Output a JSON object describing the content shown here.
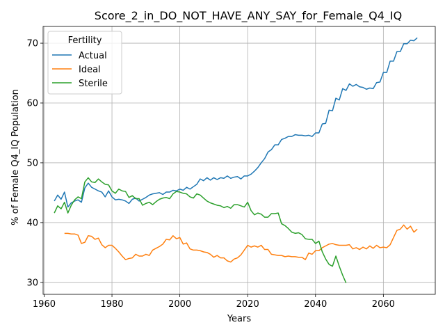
{
  "chart_data": {
    "type": "line",
    "title": "Score_2_in_DO_NOT_HAVE_ANY_SAY_for_Female_Q4_IQ",
    "xlabel": "Years",
    "ylabel": "% of Female Q4_IQ Population",
    "xlim": [
      1959.7,
      2075.3
    ],
    "ylim": [
      28.0,
      72.8
    ],
    "xticks": [
      1960,
      1980,
      2000,
      2020,
      2040,
      2060
    ],
    "yticks": [
      30,
      40,
      50,
      60,
      70
    ],
    "grid": true,
    "legend": {
      "title": "Fertility",
      "position": "top-left"
    },
    "series": [
      {
        "name": "Actual",
        "color": "#1f77b4",
        "x": [
          1963,
          1964,
          1965,
          1966,
          1967,
          1968,
          1969,
          1970,
          1971,
          1972,
          1973,
          1974,
          1975,
          1976,
          1977,
          1978,
          1979,
          1980,
          1981,
          1982,
          1983,
          1984,
          1985,
          1986,
          1987,
          1988,
          1989,
          1990,
          1991,
          1992,
          1993,
          1994,
          1995,
          1996,
          1997,
          1998,
          1999,
          2000,
          2001,
          2002,
          2003,
          2004,
          2005,
          2006,
          2007,
          2008,
          2009,
          2010,
          2011,
          2012,
          2013,
          2014,
          2015,
          2016,
          2017,
          2018,
          2019,
          2020,
          2021,
          2022,
          2023,
          2024,
          2025,
          2026,
          2027,
          2028,
          2029,
          2030,
          2031,
          2032,
          2033,
          2034,
          2035,
          2036,
          2037,
          2038,
          2039,
          2040,
          2041,
          2042,
          2043,
          2044,
          2045,
          2046,
          2047,
          2048,
          2049,
          2050,
          2051,
          2052,
          2053,
          2054,
          2055,
          2056,
          2057,
          2058,
          2059,
          2060,
          2061,
          2062,
          2063,
          2064,
          2065,
          2066,
          2067,
          2068,
          2069,
          2070
        ],
        "y": [
          43.6,
          44.6,
          43.9,
          45.1,
          42.6,
          43.3,
          43.6,
          43.8,
          43.4,
          45.8,
          46.6,
          45.9,
          45.6,
          45.3,
          45.1,
          44.3,
          45.3,
          44.3,
          43.8,
          43.9,
          43.8,
          43.6,
          43.2,
          43.9,
          44.1,
          43.6,
          43.9,
          44.2,
          44.6,
          44.8,
          44.9,
          45.0,
          44.7,
          45.1,
          45.1,
          45.4,
          45.3,
          45.6,
          45.4,
          45.9,
          45.6,
          46.0,
          46.4,
          47.3,
          47.0,
          47.5,
          47.1,
          47.5,
          47.2,
          47.5,
          47.4,
          47.8,
          47.4,
          47.6,
          47.7,
          47.3,
          47.8,
          47.8,
          48.1,
          48.6,
          49.2,
          50.0,
          50.7,
          51.8,
          52.2,
          53.0,
          53.0,
          53.9,
          54.1,
          54.4,
          54.4,
          54.7,
          54.6,
          54.6,
          54.5,
          54.6,
          54.4,
          55.0,
          55.0,
          56.5,
          56.6,
          58.8,
          58.7,
          60.8,
          60.5,
          62.4,
          62.1,
          63.2,
          62.8,
          63.1,
          62.7,
          62.6,
          62.3,
          62.5,
          62.4,
          63.4,
          63.5,
          65.1,
          65.1,
          67.0,
          67.0,
          68.6,
          68.6,
          69.9,
          69.9,
          70.5,
          70.4,
          70.9
        ]
      },
      {
        "name": "Ideal",
        "color": "#ff7f0e",
        "x": [
          1966,
          1967,
          1968,
          1969,
          1970,
          1971,
          1972,
          1973,
          1974,
          1975,
          1976,
          1977,
          1978,
          1979,
          1980,
          1981,
          1982,
          1983,
          1984,
          1985,
          1986,
          1987,
          1988,
          1989,
          1990,
          1991,
          1992,
          1993,
          1994,
          1995,
          1996,
          1997,
          1998,
          1999,
          2000,
          2001,
          2002,
          2003,
          2004,
          2005,
          2006,
          2007,
          2008,
          2009,
          2010,
          2011,
          2012,
          2013,
          2014,
          2015,
          2016,
          2017,
          2018,
          2019,
          2020,
          2021,
          2022,
          2023,
          2024,
          2025,
          2026,
          2027,
          2028,
          2029,
          2030,
          2031,
          2032,
          2033,
          2034,
          2035,
          2036,
          2037,
          2038,
          2039,
          2040,
          2041,
          2042,
          2043,
          2044,
          2045,
          2046,
          2047,
          2048,
          2049,
          2050,
          2051,
          2052,
          2053,
          2054,
          2055,
          2056,
          2057,
          2058,
          2059,
          2060,
          2061,
          2062,
          2063,
          2064,
          2065,
          2066,
          2067,
          2068,
          2069,
          2070
        ],
        "y": [
          38.2,
          38.2,
          38.1,
          38.1,
          37.9,
          36.5,
          36.7,
          37.8,
          37.7,
          37.2,
          37.4,
          36.3,
          35.8,
          36.2,
          36.2,
          35.7,
          35.1,
          34.4,
          33.8,
          34.0,
          34.1,
          34.7,
          34.4,
          34.4,
          34.7,
          34.5,
          35.4,
          35.7,
          36.0,
          36.4,
          37.2,
          37.1,
          37.8,
          37.3,
          37.5,
          36.4,
          36.6,
          35.6,
          35.4,
          35.4,
          35.3,
          35.1,
          35.0,
          34.7,
          34.2,
          34.5,
          34.1,
          34.1,
          33.6,
          33.4,
          33.9,
          34.1,
          34.6,
          35.4,
          36.2,
          35.9,
          36.1,
          35.9,
          36.2,
          35.5,
          35.5,
          34.7,
          34.6,
          34.5,
          34.5,
          34.3,
          34.4,
          34.3,
          34.3,
          34.2,
          34.2,
          33.8,
          34.9,
          34.7,
          35.3,
          35.3,
          35.8,
          36.1,
          36.4,
          36.5,
          36.3,
          36.2,
          36.2,
          36.2,
          36.3,
          35.6,
          35.8,
          35.5,
          35.9,
          35.6,
          36.1,
          35.7,
          36.2,
          35.8,
          35.9,
          35.8,
          36.3,
          37.5,
          38.7,
          38.9,
          39.6,
          38.9,
          39.4,
          38.4,
          38.9
        ]
      },
      {
        "name": "Sterile",
        "color": "#2ca02c",
        "x": [
          1963,
          1964,
          1965,
          1966,
          1967,
          1968,
          1969,
          1970,
          1971,
          1972,
          1973,
          1974,
          1975,
          1976,
          1977,
          1978,
          1979,
          1980,
          1981,
          1982,
          1983,
          1984,
          1985,
          1986,
          1987,
          1988,
          1989,
          1990,
          1991,
          1992,
          1993,
          1994,
          1995,
          1996,
          1997,
          1998,
          1999,
          2000,
          2001,
          2002,
          2003,
          2004,
          2005,
          2006,
          2007,
          2008,
          2009,
          2010,
          2011,
          2012,
          2013,
          2014,
          2015,
          2016,
          2017,
          2018,
          2019,
          2020,
          2021,
          2022,
          2023,
          2024,
          2025,
          2026,
          2027,
          2028,
          2029,
          2030,
          2031,
          2032,
          2033,
          2034,
          2035,
          2036,
          2037,
          2038,
          2039,
          2040,
          2041,
          2042,
          2043,
          2044,
          2045,
          2046,
          2047,
          2048,
          2049
        ],
        "y": [
          41.6,
          42.8,
          42.3,
          43.4,
          41.6,
          42.9,
          43.8,
          44.3,
          44.0,
          46.8,
          47.5,
          46.8,
          46.7,
          47.3,
          46.8,
          46.4,
          46.3,
          45.3,
          44.9,
          45.6,
          45.3,
          45.2,
          44.2,
          44.5,
          44.0,
          44.0,
          42.9,
          43.2,
          43.4,
          43.0,
          43.5,
          43.9,
          44.1,
          44.2,
          44.0,
          44.8,
          45.2,
          45.1,
          44.9,
          44.8,
          44.3,
          44.1,
          44.8,
          44.6,
          44.1,
          43.6,
          43.3,
          43.1,
          42.9,
          42.8,
          42.5,
          42.7,
          42.4,
          43.0,
          43.0,
          42.8,
          42.6,
          43.4,
          42.0,
          41.3,
          41.6,
          41.4,
          40.9,
          40.9,
          41.5,
          41.5,
          41.6,
          39.8,
          39.5,
          39.0,
          38.4,
          38.2,
          38.3,
          38.0,
          37.3,
          37.2,
          37.2,
          36.5,
          36.9,
          35.1,
          33.9,
          33.0,
          32.7,
          34.4,
          32.7,
          31.2,
          29.9
        ]
      }
    ]
  }
}
